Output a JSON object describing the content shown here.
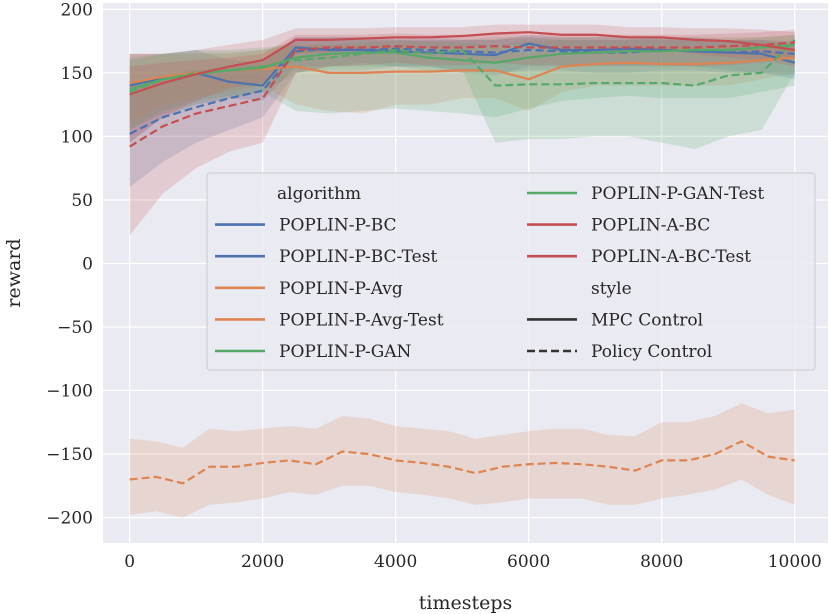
{
  "chart_data": {
    "type": "line",
    "xlabel": "timesteps",
    "ylabel": "reward",
    "xlim": [
      -400,
      10500
    ],
    "ylim": [
      -220,
      205
    ],
    "xticks": [
      0,
      2000,
      4000,
      6000,
      8000,
      10000
    ],
    "yticks": [
      -200,
      -150,
      -100,
      -50,
      0,
      50,
      100,
      150,
      200
    ],
    "xtick_labels": [
      "0",
      "2000",
      "4000",
      "6000",
      "8000",
      "10000"
    ],
    "ytick_labels": [
      "−200",
      "−150",
      "−100",
      "−50",
      "0",
      "50",
      "100",
      "150",
      "200"
    ],
    "grid": true,
    "background": "#eaeaf2",
    "legend": {
      "placement": "center-right",
      "hue_title": "algorithm",
      "style_title": "style",
      "styles": [
        {
          "name": "MPC Control",
          "dash": "solid"
        },
        {
          "name": "Policy Control",
          "dash": "dashed"
        }
      ]
    },
    "series": [
      {
        "name": "POPLIN-P-BC",
        "color": "#4c72b0",
        "dash": "solid",
        "x": [
          0,
          500,
          1000,
          1500,
          2000,
          2500,
          3000,
          3500,
          4000,
          4500,
          5000,
          5500,
          6000,
          6500,
          7000,
          7500,
          8000,
          8500,
          9000,
          9500,
          10000
        ],
        "y": [
          140,
          146,
          150,
          143,
          140,
          170,
          168,
          168,
          167,
          166,
          165,
          164,
          173,
          168,
          168,
          169,
          168,
          167,
          166,
          165,
          158
        ],
        "lower": [
          95,
          115,
          125,
          130,
          128,
          155,
          155,
          158,
          155,
          155,
          150,
          148,
          155,
          155,
          155,
          155,
          155,
          155,
          152,
          150,
          145
        ],
        "upper": [
          165,
          165,
          168,
          160,
          158,
          178,
          178,
          178,
          176,
          176,
          176,
          176,
          180,
          178,
          178,
          178,
          178,
          178,
          176,
          176,
          172
        ]
      },
      {
        "name": "POPLIN-P-BC-Test",
        "color": "#4c72b0",
        "dash": "dashed",
        "x": [
          0,
          500,
          1000,
          1500,
          2000,
          2500,
          3000,
          3500,
          4000,
          4500,
          5000,
          5500,
          6000,
          6500,
          7000,
          7500,
          8000,
          8500,
          9000,
          9500,
          10000
        ],
        "y": [
          102,
          115,
          123,
          130,
          136,
          167,
          169,
          168,
          169,
          168,
          167,
          166,
          168,
          167,
          166,
          166,
          168,
          167,
          166,
          167,
          165
        ],
        "lower": [
          60,
          80,
          95,
          105,
          115,
          150,
          155,
          155,
          155,
          155,
          152,
          150,
          152,
          152,
          150,
          150,
          152,
          152,
          150,
          150,
          148
        ],
        "upper": [
          140,
          148,
          152,
          155,
          160,
          178,
          178,
          178,
          178,
          178,
          176,
          176,
          178,
          176,
          176,
          176,
          178,
          176,
          176,
          176,
          175
        ]
      },
      {
        "name": "POPLIN-P-Avg",
        "color": "#dd8452",
        "dash": "solid",
        "x": [
          0,
          500,
          1000,
          1500,
          2000,
          2500,
          3000,
          3500,
          4000,
          4500,
          5000,
          5500,
          6000,
          6500,
          7000,
          7500,
          8000,
          8500,
          9000,
          9500,
          10000
        ],
        "y": [
          142,
          147,
          150,
          152,
          153,
          155,
          150,
          150,
          151,
          151,
          152,
          152,
          145,
          155,
          157,
          158,
          157,
          157,
          158,
          160,
          162
        ],
        "lower": [
          110,
          125,
          130,
          135,
          140,
          125,
          120,
          118,
          125,
          125,
          130,
          130,
          120,
          135,
          140,
          140,
          140,
          140,
          140,
          145,
          150
        ],
        "upper": [
          165,
          165,
          165,
          165,
          168,
          172,
          172,
          172,
          170,
          170,
          170,
          170,
          165,
          170,
          170,
          172,
          170,
          170,
          172,
          172,
          175
        ]
      },
      {
        "name": "POPLIN-P-Avg-Test",
        "color": "#dd8452",
        "dash": "dashed",
        "x": [
          0,
          400,
          800,
          1200,
          1600,
          2000,
          2400,
          2800,
          3200,
          3600,
          4000,
          4400,
          4800,
          5200,
          5600,
          6000,
          6400,
          6800,
          7200,
          7600,
          8000,
          8400,
          8800,
          9200,
          9600,
          10000
        ],
        "y": [
          -170,
          -168,
          -173,
          -160,
          -160,
          -157,
          -155,
          -158,
          -148,
          -150,
          -155,
          -157,
          -160,
          -165,
          -160,
          -158,
          -157,
          -158,
          -160,
          -163,
          -155,
          -155,
          -150,
          -140,
          -152,
          -155
        ],
        "lower": [
          -198,
          -195,
          -200,
          -190,
          -188,
          -185,
          -180,
          -182,
          -175,
          -175,
          -180,
          -182,
          -185,
          -190,
          -188,
          -185,
          -185,
          -185,
          -190,
          -190,
          -185,
          -182,
          -178,
          -170,
          -182,
          -190
        ],
        "upper": [
          -138,
          -140,
          -145,
          -130,
          -132,
          -130,
          -128,
          -130,
          -120,
          -122,
          -128,
          -130,
          -132,
          -138,
          -135,
          -132,
          -130,
          -130,
          -135,
          -136,
          -125,
          -125,
          -120,
          -110,
          -118,
          -115
        ]
      },
      {
        "name": "POPLIN-P-GAN",
        "color": "#55a868",
        "dash": "solid",
        "x": [
          0,
          500,
          1000,
          1500,
          2000,
          2500,
          3000,
          3500,
          4000,
          4500,
          5000,
          5500,
          6000,
          6500,
          7000,
          7500,
          8000,
          8500,
          9000,
          9500,
          10000
        ],
        "y": [
          137,
          145,
          149,
          152,
          154,
          162,
          165,
          166,
          166,
          162,
          160,
          158,
          162,
          165,
          166,
          167,
          167,
          168,
          168,
          170,
          172
        ],
        "lower": [
          105,
          120,
          128,
          132,
          135,
          120,
          118,
          120,
          122,
          120,
          118,
          115,
          122,
          128,
          130,
          132,
          130,
          130,
          130,
          135,
          140
        ],
        "upper": [
          162,
          165,
          166,
          166,
          168,
          175,
          176,
          176,
          176,
          175,
          174,
          172,
          175,
          176,
          176,
          176,
          176,
          176,
          176,
          178,
          180
        ]
      },
      {
        "name": "POPLIN-P-GAN-Test",
        "color": "#55a868",
        "dash": "dashed",
        "x": [
          0,
          500,
          1000,
          1500,
          2000,
          2500,
          3000,
          3500,
          4000,
          4500,
          5000,
          5500,
          6000,
          6500,
          7000,
          7500,
          8000,
          8500,
          9000,
          9500,
          10000
        ],
        "y": [
          135,
          145,
          150,
          152,
          155,
          160,
          162,
          165,
          168,
          165,
          168,
          140,
          141,
          141,
          142,
          142,
          142,
          140,
          148,
          150,
          176
        ],
        "lower": [
          105,
          118,
          125,
          130,
          135,
          150,
          152,
          152,
          155,
          152,
          152,
          95,
          98,
          98,
          100,
          100,
          95,
          90,
          100,
          105,
          150
        ],
        "upper": [
          160,
          165,
          168,
          168,
          170,
          172,
          172,
          174,
          175,
          175,
          176,
          178,
          178,
          178,
          178,
          178,
          178,
          178,
          178,
          178,
          180
        ]
      },
      {
        "name": "POPLIN-A-BC",
        "color": "#c44e52",
        "dash": "solid",
        "x": [
          0,
          500,
          1000,
          1500,
          2000,
          2500,
          3000,
          3500,
          4000,
          4500,
          5000,
          5500,
          6000,
          6500,
          7000,
          7500,
          8000,
          8500,
          9000,
          9500,
          10000
        ],
        "y": [
          133,
          142,
          149,
          155,
          160,
          176,
          176,
          177,
          178,
          178,
          179,
          181,
          182,
          180,
          180,
          178,
          178,
          176,
          175,
          172,
          168
        ],
        "lower": [
          95,
          115,
          128,
          138,
          142,
          165,
          166,
          168,
          168,
          170,
          170,
          172,
          172,
          170,
          170,
          168,
          168,
          165,
          162,
          160,
          155
        ],
        "upper": [
          165,
          165,
          168,
          172,
          176,
          185,
          185,
          185,
          186,
          186,
          186,
          188,
          188,
          188,
          188,
          186,
          186,
          185,
          185,
          184,
          182
        ]
      },
      {
        "name": "POPLIN-A-BC-Test",
        "color": "#c44e52",
        "dash": "dashed",
        "x": [
          0,
          500,
          1000,
          1500,
          2000,
          2500,
          3000,
          3500,
          4000,
          4500,
          5000,
          5500,
          6000,
          6500,
          7000,
          7500,
          8000,
          8500,
          9000,
          9500,
          10000
        ],
        "y": [
          92,
          108,
          118,
          124,
          130,
          168,
          170,
          170,
          171,
          170,
          170,
          171,
          170,
          170,
          170,
          170,
          170,
          170,
          171,
          172,
          174
        ],
        "lower": [
          22,
          55,
          75,
          88,
          95,
          150,
          155,
          156,
          158,
          156,
          156,
          158,
          156,
          156,
          156,
          156,
          156,
          155,
          156,
          158,
          162
        ],
        "upper": [
          155,
          158,
          160,
          162,
          165,
          180,
          180,
          180,
          181,
          180,
          180,
          181,
          180,
          180,
          180,
          180,
          180,
          180,
          181,
          182,
          184
        ]
      }
    ]
  }
}
